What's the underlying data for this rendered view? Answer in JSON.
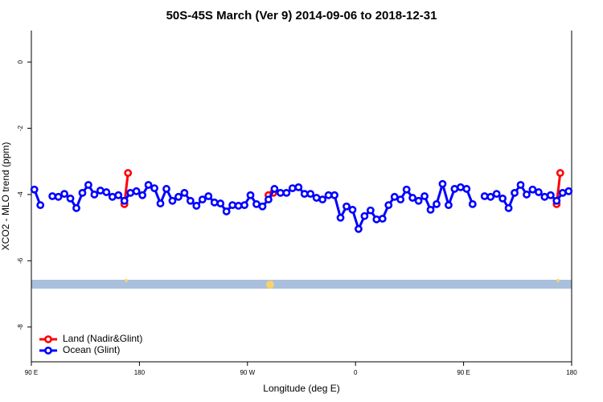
{
  "chart_data": {
    "type": "line",
    "title": "50S-45S March (Ver 9)   2014-09-06 to 2018-12-31",
    "xlabel": "Longitude (deg E)",
    "ylabel": "XCO2 - MLO trend (ppm)",
    "xlim": [
      90,
      540
    ],
    "xticks": [
      {
        "value": 90,
        "label": "90 E"
      },
      {
        "value": 180,
        "label": "180"
      },
      {
        "value": 270,
        "label": "90 W"
      },
      {
        "value": 360,
        "label": "0"
      },
      {
        "value": 450,
        "label": "90 E"
      },
      {
        "value": 540,
        "label": "180"
      }
    ],
    "ylim": [
      -9.05,
      0.95
    ],
    "yticks": [
      0,
      -2,
      -4,
      -6,
      -8
    ],
    "legend": "bottom-left",
    "series": [
      {
        "name": "Land (Nadir&Glint)",
        "color": "#ff0000",
        "x": [
          167.5,
          170.5,
          230,
          287.5,
          291.5,
          400,
          527.5,
          530.5
        ],
        "values": [
          -4.29,
          -3.35,
          null,
          -4.02,
          -3.95,
          null,
          -4.29,
          -3.35
        ]
      },
      {
        "name": "Ocean (Glint)",
        "color": "#0000ff",
        "x": [
          92.5,
          97.5,
          102.5,
          107.5,
          112.5,
          117.5,
          122.5,
          127.5,
          132.5,
          137.5,
          142.5,
          147.5,
          152.5,
          157.5,
          162.5,
          167.5,
          172.5,
          177.5,
          182.5,
          187.5,
          192.5,
          197.5,
          202.5,
          207.5,
          212.5,
          217.5,
          222.5,
          227.5,
          232.5,
          237.5,
          242.5,
          247.5,
          252.5,
          257.5,
          262.5,
          267.5,
          272.5,
          277.5,
          282.5,
          287.5,
          292.5,
          297.5,
          302.5,
          307.5,
          312.5,
          317.5,
          322.5,
          327.5,
          332.5,
          337.5,
          342.5,
          347.5,
          352.5,
          357.5,
          362.5,
          367.5,
          372.5,
          377.5,
          382.5,
          387.5,
          392.5,
          397.5,
          402.5,
          407.5,
          412.5,
          417.5,
          422.5,
          427.5,
          432.5,
          437.5,
          442.5,
          447.5,
          452.5,
          457.5,
          462.5,
          467.5,
          472.5,
          477.5,
          482.5,
          487.5,
          492.5,
          497.5,
          502.5,
          507.5,
          512.5,
          517.5,
          522.5,
          527.5,
          532.5,
          537.5
        ],
        "values": [
          -3.85,
          -4.32,
          null,
          -4.05,
          -4.07,
          -3.98,
          -4.12,
          -4.41,
          -3.95,
          -3.71,
          -4.0,
          -3.88,
          -3.93,
          -4.07,
          -4.02,
          -4.19,
          -3.95,
          -3.9,
          -4.02,
          -3.71,
          -3.81,
          -4.27,
          -3.83,
          -4.19,
          -4.07,
          -3.95,
          -4.19,
          -4.34,
          -4.15,
          -4.05,
          -4.24,
          -4.27,
          -4.51,
          -4.32,
          -4.34,
          -4.32,
          -4.02,
          -4.29,
          -4.36,
          -4.15,
          -3.83,
          -3.95,
          -3.95,
          -3.81,
          -3.78,
          -3.98,
          -3.98,
          -4.1,
          -4.15,
          -4.02,
          -4.02,
          -4.7,
          -4.36,
          -4.46,
          -5.04,
          -4.65,
          -4.48,
          -4.75,
          -4.73,
          -4.32,
          -4.07,
          -4.15,
          -3.85,
          -4.1,
          -4.19,
          -4.05,
          -4.46,
          -4.29,
          -3.68,
          -4.32,
          -3.83,
          -3.78,
          -3.83,
          -4.29,
          null,
          -4.05,
          -4.07,
          -3.98,
          -4.12,
          -4.41,
          -3.95,
          -3.71,
          -4.0,
          -3.85,
          -3.93,
          -4.07,
          -4.02,
          -4.19,
          -3.95,
          -3.9
        ]
      }
    ]
  }
}
